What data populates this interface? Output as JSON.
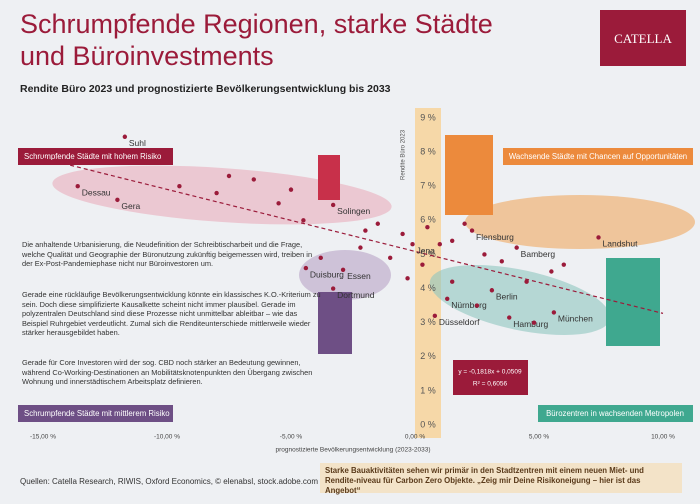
{
  "chart_data": {
    "type": "scatter",
    "title_lines": [
      "Schrumpfende Regionen, starke Städte",
      "und Büroinvestments"
    ],
    "logo": "CATELLA",
    "subtitle": "Rendite Büro 2023 und prognostizierte Bevölkerungsentwicklung bis 2033",
    "y_axis_label": "Rendite Büro 2023",
    "x_axis_label": "prognostizierte Bevölkerungsentwicklung (2023-2033)",
    "xlim": [
      -15,
      10
    ],
    "ylim": [
      0,
      9
    ],
    "xticks": [
      {
        "value": -15,
        "label": "-15,00 %"
      },
      {
        "value": -10,
        "label": "-10,00 %"
      },
      {
        "value": -5,
        "label": "-5,00 %"
      },
      {
        "value": 0,
        "label": "0,00 %"
      },
      {
        "value": 5,
        "label": "5,00 %"
      },
      {
        "value": 10,
        "label": "10,00 %"
      }
    ],
    "yticks": [
      {
        "value": 0,
        "label": "0 %"
      },
      {
        "value": 1,
        "label": "1 %"
      },
      {
        "value": 2,
        "label": "2 %"
      },
      {
        "value": 3,
        "label": "3 %"
      },
      {
        "value": 4,
        "label": "4 %"
      },
      {
        "value": 5,
        "label": "5 %"
      },
      {
        "value": 6,
        "label": "6 %"
      },
      {
        "value": 7,
        "label": "7 %"
      },
      {
        "value": 8,
        "label": "8 %"
      },
      {
        "value": 9,
        "label": "9 %"
      }
    ],
    "color": "#9b1b3a",
    "x": [
      -11.7,
      -13.6,
      -12.0,
      -3.3,
      -0.1,
      2.3,
      4.1,
      7.4,
      -4.4,
      -2.9,
      -3.3,
      1.3,
      3.1,
      0.8,
      3.8,
      5.6,
      -9.5,
      -8,
      -7.5,
      -6.5,
      -5.5,
      -5,
      -4.5,
      -2,
      -1.5,
      -0.5,
      0.5,
      1,
      1.5,
      2,
      2.8,
      3.5,
      4.5,
      5.5,
      6,
      -1,
      -0.3,
      0.3,
      2.5,
      4.8,
      1.5,
      -2.2,
      -3.8
    ],
    "y": [
      8.45,
      7.0,
      6.6,
      6.45,
      5.3,
      5.7,
      5.2,
      5.5,
      4.6,
      4.55,
      4.0,
      3.7,
      3.95,
      3.2,
      3.15,
      3.3,
      7.0,
      6.8,
      7.3,
      7.2,
      6.5,
      6.9,
      6.0,
      5.7,
      5.9,
      5.6,
      5.8,
      5.3,
      5.4,
      5.9,
      5.0,
      4.8,
      4.2,
      4.5,
      4.7,
      4.9,
      4.3,
      4.7,
      3.5,
      3.0,
      4.2,
      5.2,
      4.9
    ],
    "point_labels": [
      "Suhl",
      "Dessau",
      "Gera",
      "Solingen",
      "Jena",
      "Flensburg",
      "Bamberg",
      "Landshut",
      "Duisburg",
      "Essen",
      "Dortmund",
      "Nürnberg",
      "Berlin",
      "Düsseldorf",
      "Hamburg",
      "München",
      null,
      null,
      null,
      null,
      null,
      null,
      null,
      null,
      null,
      null,
      null,
      null,
      null,
      null,
      null,
      null,
      null,
      null,
      null,
      null,
      null,
      null,
      null,
      null,
      null,
      null,
      null
    ],
    "regression": {
      "equation": "y = -0,1818x + 0,0509",
      "r_squared": "R² = 0,6056"
    },
    "quadrants": {
      "top_left": "Schrumpfende Städte mit hohem Risiko",
      "top_right": "Wachsende Städte mit Chancen auf Opportunitäten",
      "bottom_left": "Schrumpfende Städte mit mittlerem Risiko",
      "bottom_right": "Bürozentren in wachsenden Metropolen"
    },
    "paragraphs": [
      "Die anhaltende Urbanisierung, die Neudefinition der Schreibtischarbeit und die Frage, welche Qualität und Geographie der Büronutzung zukünftig beigemessen wird, treiben in der Ex-Post-Pandemiephase nicht nur Büroinvestoren um.",
      "Gerade eine rückläufige Bevölkerungsentwicklung könnte ein klassisches K.O.-Kriterium zu sein. Doch diese simplifizierte Kausalkette scheint nicht immer plausibel. Gerade im polyzentralen Deutschland sind diese Prozesse nicht unmittelbar ableitbar – wie das Beispiel Ruhrgebiet verdeutlicht. Zumal sich die Renditeunterschiede mittlerweile wieder stärker herausgebildet haben.",
      "Gerade für Core Investoren wird der sog. CBD noch stärker an Bedeutung gewinnen, während Co-Working-Destinationen an Mobilitätsknotenpunkten den Übergang zwischen Wohnung und innerstädtischem Arbeitsplatz definieren."
    ],
    "source": "Quellen: Catella Research, RIWIS, Oxford Economics, © elenabsl, stock.adobe.com",
    "note": "Starke Bauaktivitäten sehen wir primär in den Stadtzentren mit einem neuen Miet- und Rendite-niveau für Carbon Zero Objekte. „Zeig mir Deine Risikoneigung – hier ist das Angebot“"
  }
}
